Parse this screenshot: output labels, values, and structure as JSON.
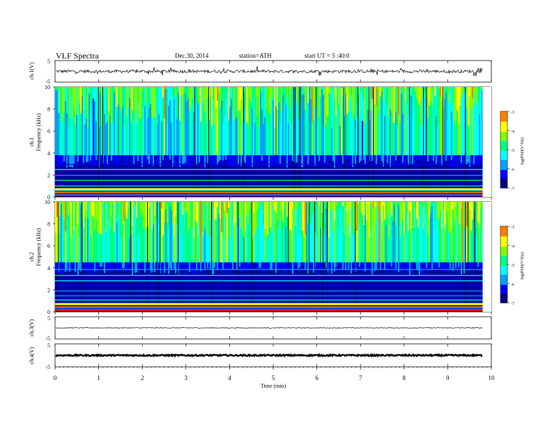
{
  "header": {
    "title": "VLF  Spectra",
    "date": "Dec.30, 2014",
    "station": "station=ATH",
    "start": "start  UT  =    5  :40:0"
  },
  "chart_data": {
    "type": "heatmap",
    "xlabel": "Time  (min)",
    "xlim": [
      0,
      10
    ],
    "xticks": [
      "0",
      "1",
      "2",
      "3",
      "4",
      "5",
      "6",
      "7",
      "8",
      "9",
      "10"
    ],
    "data_end_min": 9.8,
    "waveform_panels": [
      {
        "id": "ch1",
        "ylabel": "ch.1(V)",
        "ylim": [
          -5,
          5
        ],
        "yticks": [
          "5",
          "-5"
        ],
        "baseline_v": 0.0,
        "noise_amplitude_v": 0.7
      },
      {
        "id": "ch3",
        "ylabel": "ch.3(V)",
        "ylim": [
          -5,
          5
        ],
        "yticks": [
          "5",
          "-5"
        ],
        "baseline_v": 0.0,
        "noise_amplitude_v": 0.15
      },
      {
        "id": "ch4",
        "ylabel": "ch.4(V)",
        "ylim": [
          -5,
          5
        ],
        "yticks": [
          "5",
          "-5"
        ],
        "baseline_v": 0.0,
        "noise_amplitude_v": 0.3
      }
    ],
    "spectrogram_panels": [
      {
        "id": "ch1spec",
        "ylabel_top": "ch.1",
        "ylabel_bottom": "Frequency  (kHz)",
        "ylim": [
          0,
          10
        ],
        "yticks": [
          "0",
          "2",
          "4",
          "6",
          "8",
          "10"
        ],
        "colorbar": {
          "label": "log(PSD(V²/Hz)",
          "range": [
            -7,
            -3
          ],
          "ticks": [
            "-3",
            "-4",
            "-5",
            "-6",
            "-7"
          ]
        },
        "low_band_kHz": [
          0,
          3.8
        ],
        "high_band_kHz": [
          3.8,
          10
        ]
      },
      {
        "id": "ch2spec",
        "ylabel_top": "ch.2",
        "ylabel_bottom": "Frequency  (kHz)",
        "ylim": [
          0,
          10
        ],
        "yticks": [
          "0",
          "2",
          "4",
          "6",
          "8",
          "10"
        ],
        "colorbar": {
          "label": "log(PSD(V²/Hz)",
          "range": [
            -7,
            -3
          ],
          "ticks": [
            "-3",
            "-4",
            "-5",
            "-6",
            "-7"
          ]
        },
        "low_band_kHz": [
          0,
          4.5
        ],
        "high_band_kHz": [
          4.5,
          10
        ]
      }
    ],
    "colormap": [
      "#000080",
      "#0000ff",
      "#00a0ff",
      "#00ffff",
      "#00ff80",
      "#80ff00",
      "#ffff00",
      "#ff8000",
      "#ff0000",
      "#ffffff"
    ]
  }
}
